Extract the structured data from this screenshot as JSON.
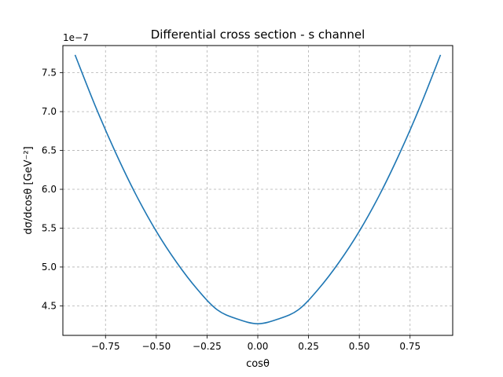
{
  "chart_data": {
    "type": "line",
    "title": "Differential cross section - s channel",
    "xlabel": "cosθ",
    "ylabel": "dσ/dcosθ  [GeV⁻²]",
    "y_offset_label": "1e−7",
    "xlim": [
      -0.96,
      0.96
    ],
    "ylim": [
      4.12,
      7.85
    ],
    "x_ticks": [
      -0.75,
      -0.5,
      -0.25,
      0.0,
      0.25,
      0.5,
      0.75
    ],
    "x_tick_labels": [
      "−0.75",
      "−0.50",
      "−0.25",
      "0.00",
      "0.25",
      "0.50",
      "0.75"
    ],
    "y_ticks": [
      4.5,
      5.0,
      5.5,
      6.0,
      6.5,
      7.0,
      7.5
    ],
    "y_tick_labels": [
      "4.5",
      "5.0",
      "5.5",
      "6.0",
      "6.5",
      "7.0",
      "7.5"
    ],
    "grid": true,
    "grid_style": "dashed",
    "series": [
      {
        "color": "#1f77b4",
        "x": [
          -0.9,
          -0.8,
          -0.7,
          -0.6,
          -0.5,
          -0.4,
          -0.3,
          -0.2,
          -0.1,
          0.0,
          0.1,
          0.2,
          0.3,
          0.4,
          0.5,
          0.6,
          0.7,
          0.8,
          0.9
        ],
        "y": [
          7.73,
          7.07,
          6.47,
          5.93,
          5.46,
          5.06,
          4.72,
          4.45,
          4.33,
          4.27,
          4.33,
          4.45,
          4.72,
          5.06,
          5.46,
          5.93,
          6.47,
          7.07,
          7.73
        ]
      }
    ]
  }
}
